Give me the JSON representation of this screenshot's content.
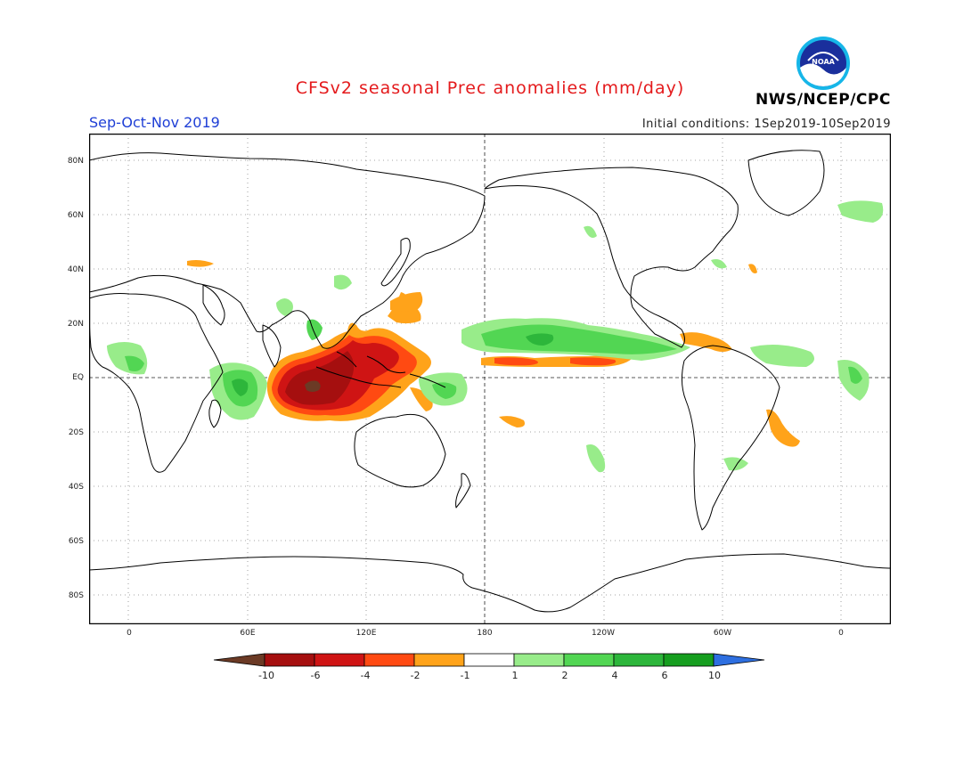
{
  "header": {
    "title": "CFSv2 seasonal Prec anomalies (mm/day)",
    "season": "Sep-Oct-Nov 2019",
    "initial_conditions": "Initial conditions: 1Sep2019-10Sep2019",
    "agency": "NWS/NCEP/CPC",
    "logo_text": "NOAA"
  },
  "axes": {
    "lat_labels": [
      "80N",
      "60N",
      "40N",
      "20N",
      "EQ",
      "20S",
      "40S",
      "60S",
      "80S"
    ],
    "lon_labels": [
      "0",
      "60E",
      "120E",
      "180",
      "120W",
      "60W",
      "0"
    ]
  },
  "colorbar": {
    "labels": [
      "-10",
      "-6",
      "-4",
      "-2",
      "-1",
      "1",
      "2",
      "4",
      "6",
      "10"
    ],
    "colors": [
      "#6b3a25",
      "#a50f0f",
      "#cf1414",
      "#ff4a12",
      "#ffa31a",
      "#ffffff",
      "#98ec8a",
      "#52d653",
      "#2db63b",
      "#169e1f",
      "#2e6fe0"
    ]
  }
}
